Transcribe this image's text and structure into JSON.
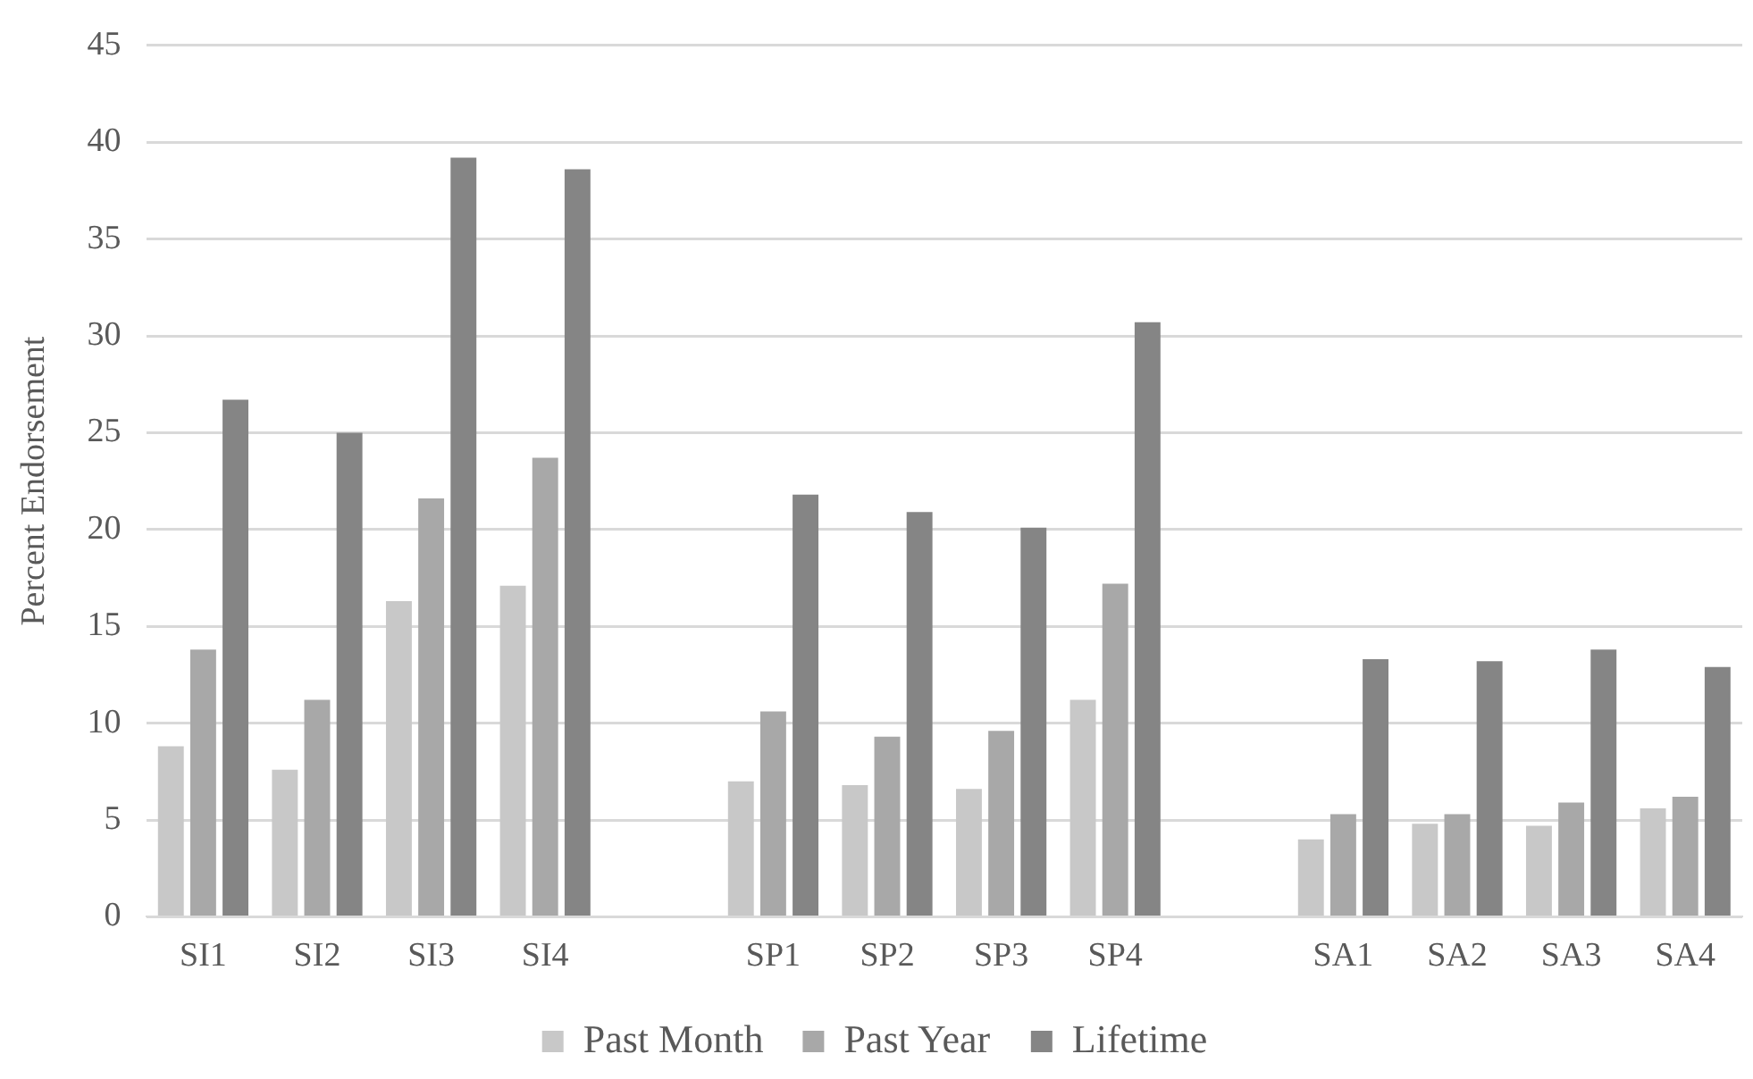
{
  "chart_data": {
    "type": "bar",
    "ylabel": "Percent Endorsement",
    "categories": [
      "SI1",
      "SI2",
      "SI3",
      "SI4",
      null,
      "SP1",
      "SP2",
      "SP3",
      "SP4",
      null,
      "SA1",
      "SA2",
      "SA3",
      "SA4"
    ],
    "series": [
      {
        "name": "Past Month",
        "color": "#c8c8c8",
        "values": [
          8.8,
          7.6,
          16.3,
          17.1,
          null,
          7.0,
          6.8,
          6.6,
          11.2,
          null,
          4.0,
          4.8,
          4.7,
          5.6
        ]
      },
      {
        "name": "Past Year",
        "color": "#a8a8a8",
        "values": [
          13.8,
          11.2,
          21.6,
          23.7,
          null,
          10.6,
          9.3,
          9.6,
          17.2,
          null,
          5.3,
          5.3,
          5.9,
          6.2
        ]
      },
      {
        "name": "Lifetime",
        "color": "#858585",
        "values": [
          26.7,
          25.0,
          39.2,
          38.6,
          null,
          21.8,
          20.9,
          20.1,
          30.7,
          null,
          13.3,
          13.2,
          13.8,
          12.9
        ]
      }
    ],
    "ylim": [
      0,
      45
    ],
    "yticks": [
      0,
      5,
      10,
      15,
      20,
      25,
      30,
      35,
      40,
      45
    ],
    "grid": "y",
    "legend": "bottom"
  }
}
